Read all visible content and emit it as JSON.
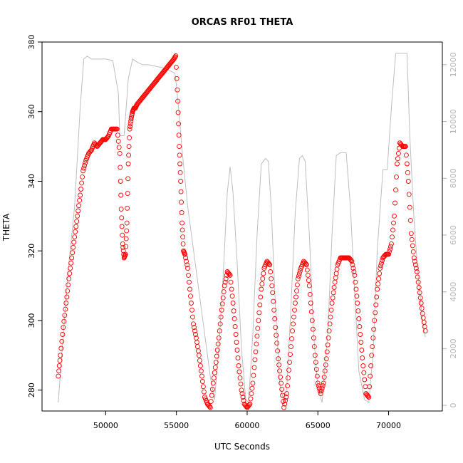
{
  "chart_data": {
    "type": "scatter",
    "title": "ORCAS RF01 THETA",
    "xlabel": "UTC Seconds",
    "ylabel": "THETA",
    "xlim": [
      45500,
      73800
    ],
    "ylim": [
      274,
      380
    ],
    "y2lim": [
      -200,
      12800
    ],
    "x_ticks": [
      50000,
      55000,
      60000,
      65000,
      70000
    ],
    "y_ticks": [
      280,
      300,
      320,
      340,
      360,
      380
    ],
    "y2_ticks": [
      0,
      2000,
      4000,
      6000,
      8000,
      10000,
      12000
    ],
    "colors": {
      "theta": "#ff0000",
      "altitude": "#bebebe"
    },
    "series": [
      {
        "marker": "circle-open",
        "color": "#ff0000",
        "axis": "left",
        "x": [
          46650,
          46800,
          47000,
          47200,
          47400,
          47600,
          47800,
          48000,
          48200,
          48400,
          48600,
          48800,
          49000,
          49200,
          49400,
          49600,
          49800,
          50000,
          50200,
          50400,
          50600,
          50800,
          51000,
          51100,
          51200,
          51300,
          51400,
          51500,
          51600,
          51700,
          51800,
          51900,
          52000,
          52100,
          52200,
          52400,
          52600,
          52800,
          53000,
          53200,
          53400,
          53600,
          53800,
          54000,
          54200,
          54400,
          54600,
          54800,
          54950,
          55100,
          55200,
          55300,
          55400,
          55500,
          55600,
          55800,
          56000,
          56200,
          56400,
          56600,
          56800,
          57000,
          57200,
          57400,
          57600,
          57800,
          58000,
          58200,
          58400,
          58600,
          58800,
          59000,
          59200,
          59400,
          59600,
          59800,
          60000,
          60200,
          60400,
          60600,
          60800,
          61000,
          61200,
          61400,
          61600,
          61800,
          62000,
          62200,
          62400,
          62600,
          62800,
          63000,
          63200,
          63400,
          63600,
          63800,
          64000,
          64200,
          64400,
          64600,
          64800,
          65000,
          65200,
          65400,
          65600,
          65800,
          66000,
          66200,
          66400,
          66600,
          66800,
          67000,
          67200,
          67400,
          67600,
          67800,
          68000,
          68200,
          68400,
          68600,
          68800,
          69000,
          69200,
          69400,
          69600,
          69800,
          70000,
          70200,
          70400,
          70600,
          70800,
          71000,
          71200,
          71400,
          71600,
          71800,
          72000,
          72200,
          72400,
          72600
        ],
        "y": [
          284,
          290,
          298,
          305,
          312,
          318,
          324,
          330,
          336,
          343,
          346,
          348,
          349,
          351,
          350,
          351,
          352,
          352,
          353,
          355,
          355,
          355,
          348,
          332,
          322,
          318,
          319,
          328,
          345,
          355,
          358,
          360,
          361,
          361,
          362,
          363,
          364,
          365,
          366,
          367,
          368,
          369,
          370,
          371,
          372,
          373,
          374,
          375,
          376,
          363,
          350,
          340,
          328,
          320,
          319,
          315,
          307,
          299,
          295,
          290,
          284,
          278,
          276,
          275,
          282,
          288,
          295,
          303,
          310,
          314,
          313,
          305,
          296,
          287,
          280,
          276,
          275,
          276,
          282,
          291,
          300,
          309,
          315,
          317,
          316,
          308,
          298,
          289,
          282,
          275,
          279,
          288,
          297,
          305,
          312,
          315,
          317,
          316,
          310,
          300,
          290,
          282,
          279,
          282,
          289,
          297,
          305,
          311,
          316,
          318,
          318,
          318,
          318,
          317,
          313,
          305,
          296,
          287,
          279,
          278,
          290,
          300,
          309,
          315,
          318,
          319,
          319,
          322,
          330,
          345,
          351,
          350,
          350,
          340,
          325,
          318,
          314,
          308,
          302,
          297
        ]
      },
      {
        "marker": "line",
        "color": "#bebebe",
        "axis": "right",
        "x": [
          46650,
          47000,
          47400,
          47800,
          48200,
          48450,
          48700,
          49000,
          49500,
          50000,
          50500,
          50900,
          51000,
          51300,
          51600,
          51900,
          52200,
          52600,
          53000,
          53500,
          54000,
          54500,
          54900,
          55100,
          55400,
          55800,
          56200,
          56600,
          57000,
          57400,
          57700,
          58000,
          58300,
          58600,
          58800,
          59000,
          59300,
          59600,
          59900,
          60100,
          60400,
          60700,
          61000,
          61300,
          61500,
          61700,
          62000,
          62300,
          62600,
          62800,
          63100,
          63400,
          63700,
          63900,
          64100,
          64400,
          64700,
          65000,
          65300,
          65700,
          66000,
          66300,
          66600,
          67000,
          67300,
          67600,
          67900,
          68300,
          68600,
          68900,
          69200,
          69600,
          69900,
          70200,
          70500,
          70700,
          71000,
          71300,
          71500,
          71800,
          72100,
          72400,
          72600
        ],
        "y": [
          100,
          2500,
          5000,
          7000,
          10500,
          12200,
          12300,
          12200,
          12200,
          12200,
          12150,
          11000,
          9500,
          9500,
          11500,
          12200,
          12100,
          12000,
          12000,
          11950,
          11900,
          11800,
          11700,
          10800,
          9000,
          7000,
          5500,
          4000,
          2500,
          1000,
          200,
          2000,
          4500,
          7500,
          8400,
          7500,
          5000,
          2000,
          200,
          100,
          2500,
          6000,
          8500,
          8700,
          8600,
          7000,
          3500,
          800,
          100,
          600,
          3500,
          6800,
          8700,
          8800,
          8600,
          6000,
          2500,
          600,
          100,
          2500,
          6000,
          8800,
          8900,
          8900,
          7000,
          4000,
          1200,
          200,
          100,
          1800,
          5500,
          8300,
          8300,
          10500,
          12400,
          12400,
          12400,
          12400,
          9500,
          6500,
          4500,
          3000,
          2400
        ]
      }
    ]
  }
}
